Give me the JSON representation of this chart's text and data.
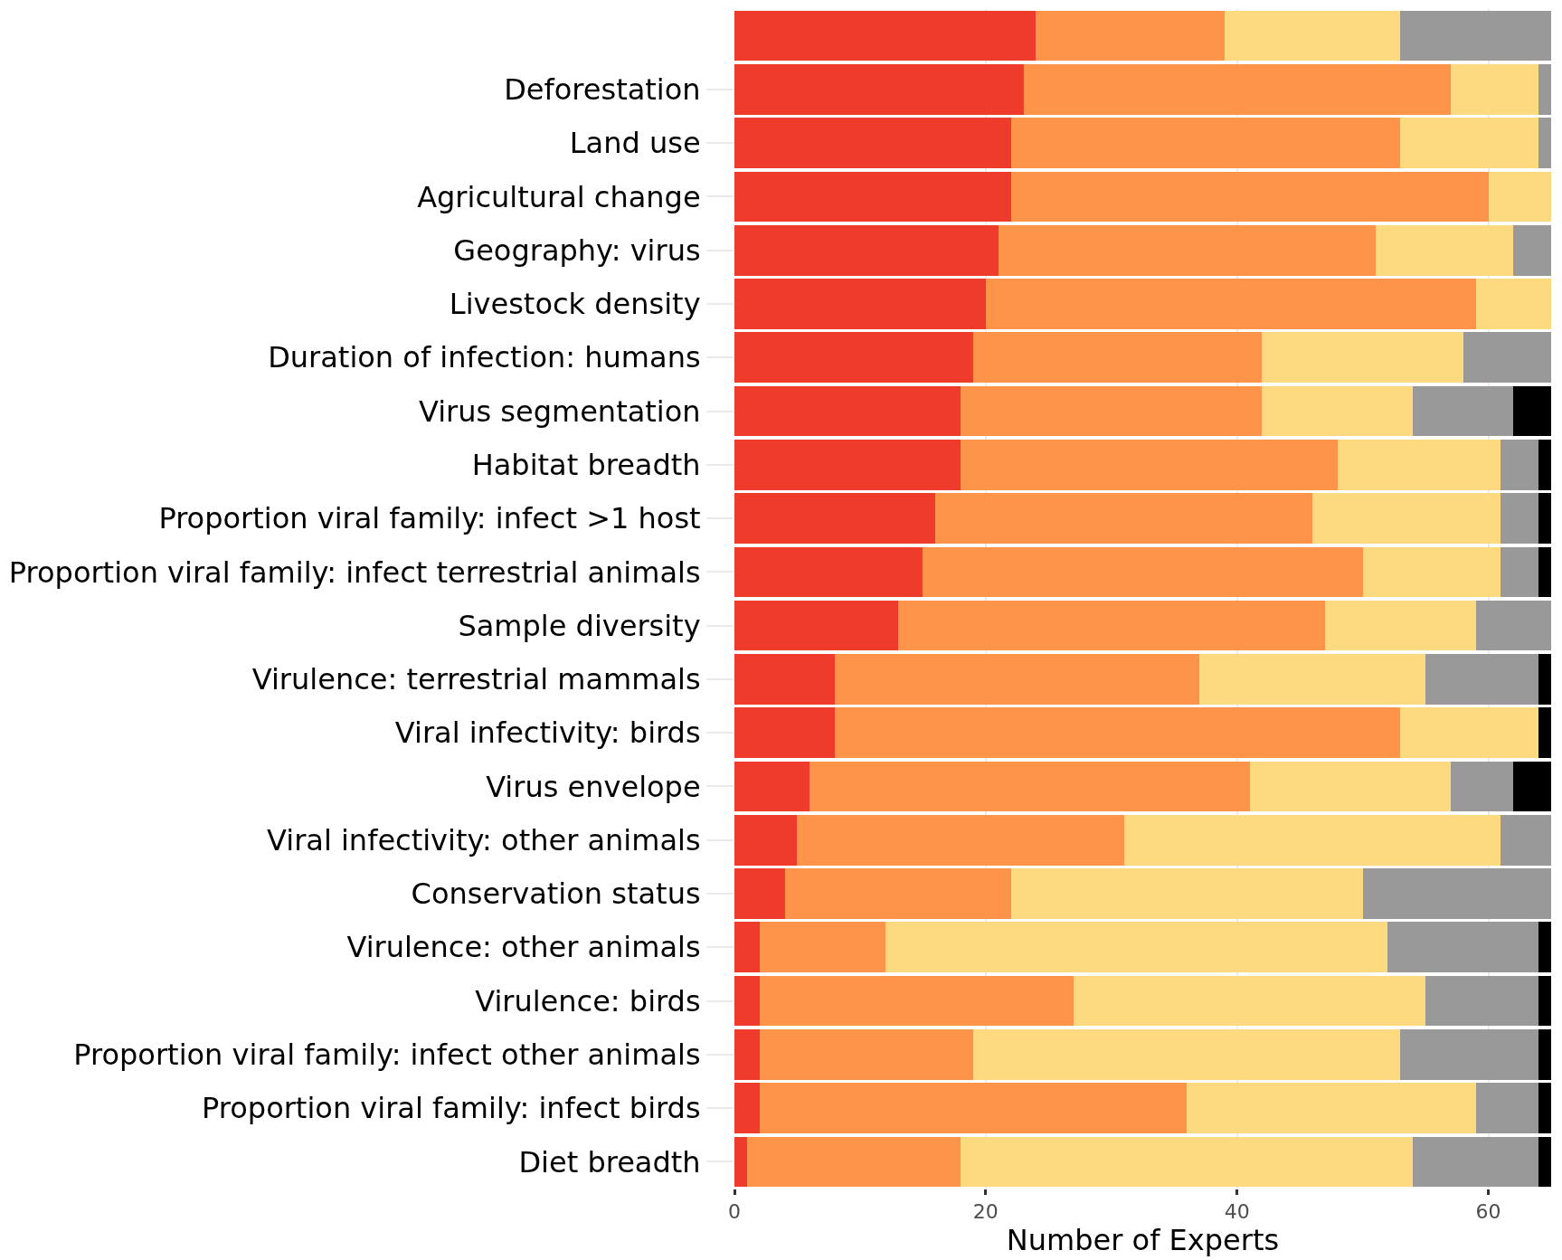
{
  "chart_data": {
    "type": "bar",
    "orientation": "horizontal",
    "stacked": true,
    "xlabel": "Number of Experts",
    "categories": [
      null,
      "Deforestation",
      "Land use",
      "Agricultural change",
      "Geography: virus",
      "Livestock density",
      "Duration of infection: humans",
      "Virus segmentation",
      "Habitat breadth",
      "Proportion viral family: infect >1 host",
      "Proportion viral family: infect terrestrial animals",
      "Sample diversity",
      "Virulence: terrestrial mammals",
      "Viral infectivity: birds",
      "Virus envelope",
      "Viral infectivity: other animals",
      "Conservation status",
      "Virulence: other animals",
      "Virulence: birds",
      "Proportion viral family: infect other animals",
      "Proportion viral family: infect birds",
      "Diet breadth"
    ],
    "series": [
      {
        "color": "#ef3b2c",
        "values": [
          24,
          23,
          22,
          22,
          21,
          20,
          19,
          18,
          18,
          16,
          15,
          13,
          8,
          8,
          6,
          5,
          4,
          2,
          2,
          2,
          2,
          1
        ]
      },
      {
        "color": "#fd9449",
        "values": [
          15,
          34,
          31,
          38,
          30,
          39,
          23,
          24,
          30,
          30,
          35,
          34,
          29,
          45,
          35,
          26,
          18,
          10,
          25,
          17,
          34,
          17
        ]
      },
      {
        "color": "#fdd97f",
        "values": [
          14,
          7,
          11,
          5,
          11,
          6,
          16,
          12,
          13,
          15,
          11,
          12,
          18,
          11,
          16,
          30,
          28,
          40,
          28,
          34,
          23,
          36
        ]
      },
      {
        "color": "#999999",
        "values": [
          12,
          1,
          1,
          null,
          3,
          null,
          7,
          8,
          3,
          3,
          3,
          6,
          9,
          null,
          5,
          4,
          15,
          12,
          9,
          11,
          5,
          10
        ]
      },
      {
        "color": "#000000",
        "values": [
          null,
          null,
          null,
          null,
          null,
          null,
          null,
          3,
          1,
          1,
          1,
          null,
          1,
          1,
          3,
          null,
          null,
          1,
          1,
          1,
          1,
          1
        ]
      }
    ],
    "xlim": [
      0,
      65
    ],
    "xticks": [
      0,
      20,
      40,
      60
    ],
    "grid": "x",
    "legend": false
  }
}
